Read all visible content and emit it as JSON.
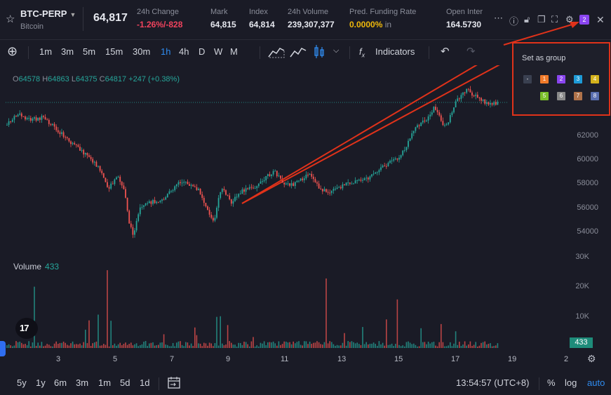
{
  "header": {
    "symbol": "BTC-PERP",
    "symbol_sub": "Bitcoin",
    "price": "64,817",
    "stats": [
      {
        "label": "24h Change",
        "value": "-1.26%/-828",
        "tone": "neg"
      },
      {
        "label": "Mark",
        "value": "64,815",
        "tone": "normal"
      },
      {
        "label": "Index",
        "value": "64,814",
        "tone": "normal"
      },
      {
        "label": "24h Volume",
        "value": "239,307,377",
        "tone": "normal"
      },
      {
        "label": "Pred. Funding Rate",
        "value": "0.0000%",
        "suffix": " in",
        "tone": "gold"
      },
      {
        "label": "Open Inter",
        "value": "164.5730",
        "tone": "normal"
      }
    ],
    "group_badge": "2"
  },
  "toolbar": {
    "intervals": [
      "1m",
      "3m",
      "5m",
      "15m",
      "30m",
      "1h",
      "4h",
      "D",
      "W",
      "M"
    ],
    "active_interval": "1h",
    "indicators_label": "Indicators"
  },
  "legend": {
    "o_label": "O",
    "o": "64578",
    "h_label": "H",
    "h": "64863",
    "l_label": "L",
    "l": "64375",
    "c_label": "C",
    "c": "64817",
    "change": "+247 (+0.38%)"
  },
  "popup": {
    "title": "Set as group",
    "groups": [
      {
        "label": "-",
        "color": "#3a4050"
      },
      {
        "label": "1",
        "color": "#f07a2a"
      },
      {
        "label": "2",
        "color": "#8a45f0"
      },
      {
        "label": "3",
        "color": "#1e9bd7"
      },
      {
        "label": "4",
        "color": "#d4b21c"
      },
      {
        "label": "5",
        "color": "#7bbf2a"
      },
      {
        "label": "6",
        "color": "#8a8a8a"
      },
      {
        "label": "7",
        "color": "#b0734a"
      },
      {
        "label": "8",
        "color": "#5a6fb0"
      }
    ]
  },
  "price_axis": [
    "62000",
    "60000",
    "58000",
    "56000",
    "54000"
  ],
  "volume_axis": [
    "30K",
    "20K",
    "10K"
  ],
  "volume": {
    "label": "Volume",
    "value": "433",
    "badge": "433"
  },
  "time_axis": [
    "3",
    "5",
    "7",
    "9",
    "11",
    "13",
    "15",
    "17",
    "19",
    "2"
  ],
  "bottom": {
    "ranges": [
      "5y",
      "1y",
      "6m",
      "3m",
      "1m",
      "5d",
      "1d"
    ],
    "clock": "13:54:57 (UTC+8)",
    "percent": "%",
    "log": "log",
    "auto": "auto"
  },
  "colors": {
    "up": "#26a69a",
    "down": "#ef5350",
    "accent": "#2f8cf0",
    "annotation": "#e0321a"
  }
}
